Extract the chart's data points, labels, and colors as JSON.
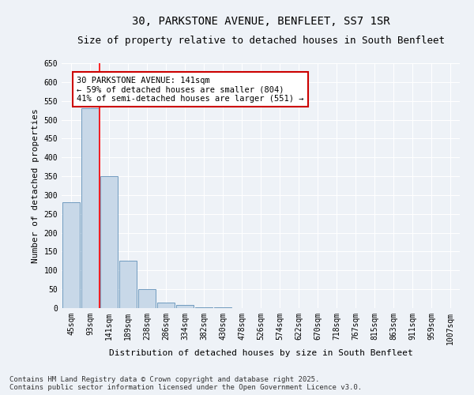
{
  "title_line1": "30, PARKSTONE AVENUE, BENFLEET, SS7 1SR",
  "title_line2": "Size of property relative to detached houses in South Benfleet",
  "xlabel": "Distribution of detached houses by size in South Benfleet",
  "ylabel": "Number of detached properties",
  "categories": [
    "45sqm",
    "93sqm",
    "141sqm",
    "189sqm",
    "238sqm",
    "286sqm",
    "334sqm",
    "382sqm",
    "430sqm",
    "478sqm",
    "526sqm",
    "574sqm",
    "622sqm",
    "670sqm",
    "718sqm",
    "767sqm",
    "815sqm",
    "863sqm",
    "911sqm",
    "959sqm",
    "1007sqm"
  ],
  "values": [
    280,
    530,
    350,
    125,
    50,
    15,
    8,
    3,
    2,
    1,
    0,
    0,
    0,
    0,
    0,
    0,
    0,
    0,
    0,
    0,
    0
  ],
  "bar_color": "#c8d8e8",
  "bar_edge_color": "#6090b8",
  "red_line_bar_index": 2,
  "annotation_text": "30 PARKSTONE AVENUE: 141sqm\n← 59% of detached houses are smaller (804)\n41% of semi-detached houses are larger (551) →",
  "annotation_box_color": "#ffffff",
  "annotation_box_edge_color": "#cc0000",
  "ylim": [
    0,
    650
  ],
  "yticks": [
    0,
    50,
    100,
    150,
    200,
    250,
    300,
    350,
    400,
    450,
    500,
    550,
    600,
    650
  ],
  "background_color": "#eef2f7",
  "grid_color": "#ffffff",
  "footer_text": "Contains HM Land Registry data © Crown copyright and database right 2025.\nContains public sector information licensed under the Open Government Licence v3.0.",
  "title_fontsize": 10,
  "subtitle_fontsize": 9,
  "axis_label_fontsize": 8,
  "tick_fontsize": 7,
  "annotation_fontsize": 7.5,
  "footer_fontsize": 6.5
}
